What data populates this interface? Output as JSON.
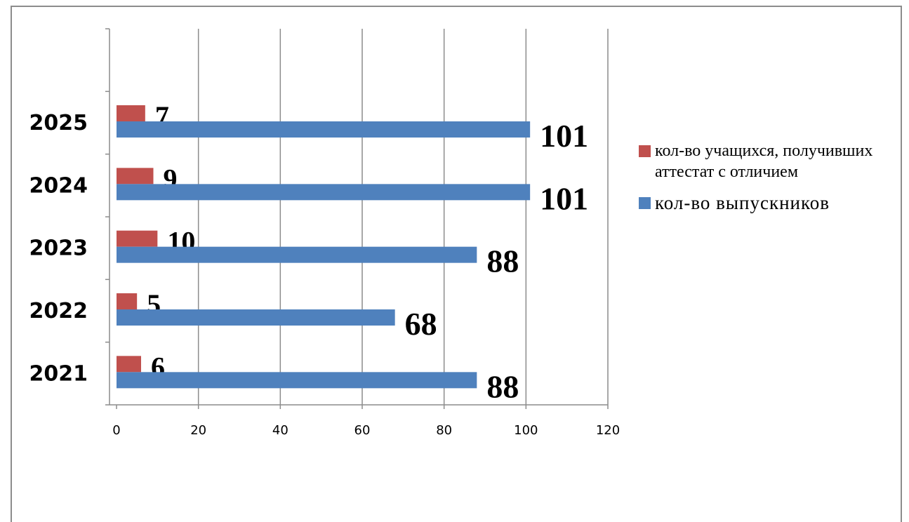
{
  "chart_data": {
    "type": "bar",
    "orientation": "horizontal",
    "categories": [
      "2021",
      "2022",
      "2023",
      "2024",
      "2025"
    ],
    "series": [
      {
        "name": "кол-во выпускников",
        "color": "#4f81bd",
        "values": [
          88,
          68,
          88,
          101,
          101
        ]
      },
      {
        "name": "кол-во учащихся, получивших аттестат с отличием",
        "color": "#c0504d",
        "values": [
          6,
          5,
          10,
          9,
          7
        ]
      }
    ],
    "xlim": [
      0,
      120
    ],
    "xticks": [
      0,
      20,
      40,
      60,
      80,
      100,
      120
    ],
    "grid": true,
    "legend_position": "right"
  },
  "legend": {
    "items": [
      {
        "label": "кол-во учащихся, получивших аттестат с отличием",
        "color": "#c0504d"
      },
      {
        "label": "кол-во выпускников",
        "color": "#4f81bd"
      }
    ]
  }
}
